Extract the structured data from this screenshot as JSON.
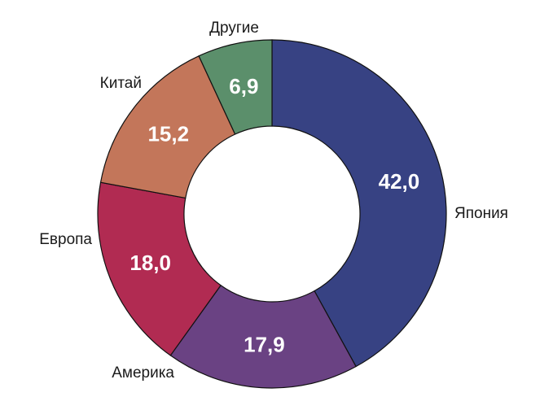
{
  "chart_data": {
    "type": "pie",
    "donut": true,
    "title": "",
    "categories": [
      "Япония",
      "Америка",
      "Европа",
      "Китай",
      "Другие"
    ],
    "values": [
      42.0,
      17.9,
      18.0,
      15.2,
      6.9
    ],
    "value_labels": [
      "42,0",
      "17,9",
      "18,0",
      "15,2",
      "6,9"
    ],
    "colors": [
      "#374283",
      "#6a4283",
      "#b12b52",
      "#c3765a",
      "#5b8f6b"
    ],
    "start": "12 o'clock",
    "direction": "clockwise",
    "legend": "none (labels placed next to slices)"
  }
}
